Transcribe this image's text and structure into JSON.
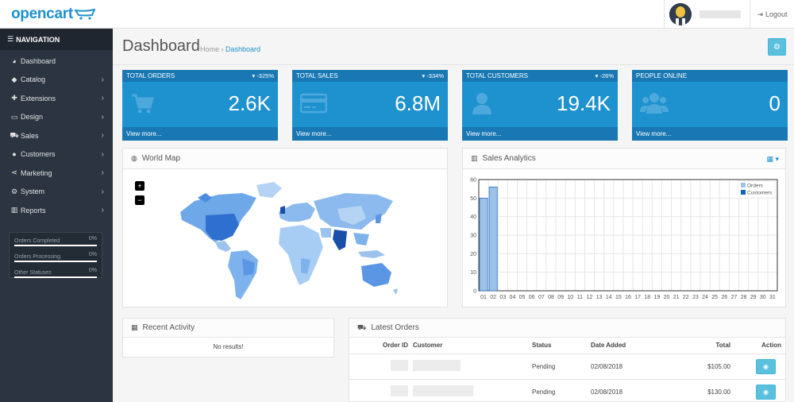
{
  "header": {
    "logo_text": "opencart",
    "logout_label": "Logout"
  },
  "sidebar": {
    "nav_title": "NAVIGATION",
    "items": [
      {
        "label": "Dashboard",
        "icon": "dashboard-icon",
        "has_children": false
      },
      {
        "label": "Catalog",
        "icon": "tag-icon",
        "has_children": true
      },
      {
        "label": "Extensions",
        "icon": "puzzle-icon",
        "has_children": true
      },
      {
        "label": "Design",
        "icon": "monitor-icon",
        "has_children": true
      },
      {
        "label": "Sales",
        "icon": "cart-icon",
        "has_children": true
      },
      {
        "label": "Customers",
        "icon": "user-icon",
        "has_children": true
      },
      {
        "label": "Marketing",
        "icon": "share-icon",
        "has_children": true
      },
      {
        "label": "System",
        "icon": "gear-icon",
        "has_children": true
      },
      {
        "label": "Reports",
        "icon": "bar-chart-icon",
        "has_children": true
      }
    ],
    "stats": [
      {
        "label": "Orders Completed",
        "value": "0%"
      },
      {
        "label": "Orders Processing",
        "value": "0%"
      },
      {
        "label": "Other Statuses",
        "value": "0%"
      }
    ]
  },
  "page": {
    "title": "Dashboard",
    "breadcrumb_home": "Home",
    "breadcrumb_current": "Dashboard"
  },
  "tiles": [
    {
      "label": "TOTAL ORDERS",
      "pct": "-325%",
      "value": "2.6K",
      "footer": "View more...",
      "icon": "cart-icon"
    },
    {
      "label": "TOTAL SALES",
      "pct": "-334%",
      "value": "6.8M",
      "footer": "View more...",
      "icon": "credit-card-icon"
    },
    {
      "label": "TOTAL CUSTOMERS",
      "pct": "-26%",
      "value": "19.4K",
      "footer": "View more...",
      "icon": "user-icon"
    },
    {
      "label": "PEOPLE ONLINE",
      "pct": "",
      "value": "0",
      "footer": "View more...",
      "icon": "users-icon"
    }
  ],
  "world_map": {
    "title": "World Map",
    "zoom_in": "+",
    "zoom_out": "−"
  },
  "sales_analytics": {
    "title": "Sales Analytics"
  },
  "chart_data": {
    "type": "bar",
    "title": "",
    "categories": [
      "01",
      "02",
      "03",
      "04",
      "05",
      "06",
      "07",
      "08",
      "09",
      "10",
      "11",
      "12",
      "13",
      "14",
      "15",
      "16",
      "17",
      "18",
      "19",
      "20",
      "21",
      "22",
      "23",
      "24",
      "25",
      "26",
      "27",
      "28",
      "29",
      "30",
      "31"
    ],
    "series": [
      {
        "name": "Orders",
        "values": [
          50,
          56,
          0,
          0,
          0,
          0,
          0,
          0,
          0,
          0,
          0,
          0,
          0,
          0,
          0,
          0,
          0,
          0,
          0,
          0,
          0,
          0,
          0,
          0,
          0,
          0,
          0,
          0,
          0,
          0,
          0
        ]
      },
      {
        "name": "Customers",
        "values": [
          0,
          0,
          0,
          0,
          0,
          0,
          0,
          0,
          0,
          0,
          0,
          0,
          0,
          0,
          0,
          0,
          0,
          0,
          0,
          0,
          0,
          0,
          0,
          0,
          0,
          0,
          0,
          0,
          0,
          0,
          0
        ]
      }
    ],
    "yticks": [
      0,
      10,
      20,
      30,
      40,
      50,
      60
    ],
    "ylim": [
      0,
      60
    ],
    "grid": true,
    "legend": "top-right",
    "colors": {
      "Orders": "#9cc2e5",
      "Customers": "#1065c0"
    }
  },
  "recent_activity": {
    "title": "Recent Activity",
    "empty": "No results!"
  },
  "latest_orders": {
    "title": "Latest Orders",
    "columns": [
      "Order ID",
      "Customer",
      "Status",
      "Date Added",
      "Total",
      "Action"
    ],
    "rows": [
      {
        "status": "Pending",
        "date": "02/08/2018",
        "total": "$105.00"
      },
      {
        "status": "Pending",
        "date": "02/08/2018",
        "total": "$130.00"
      }
    ]
  }
}
